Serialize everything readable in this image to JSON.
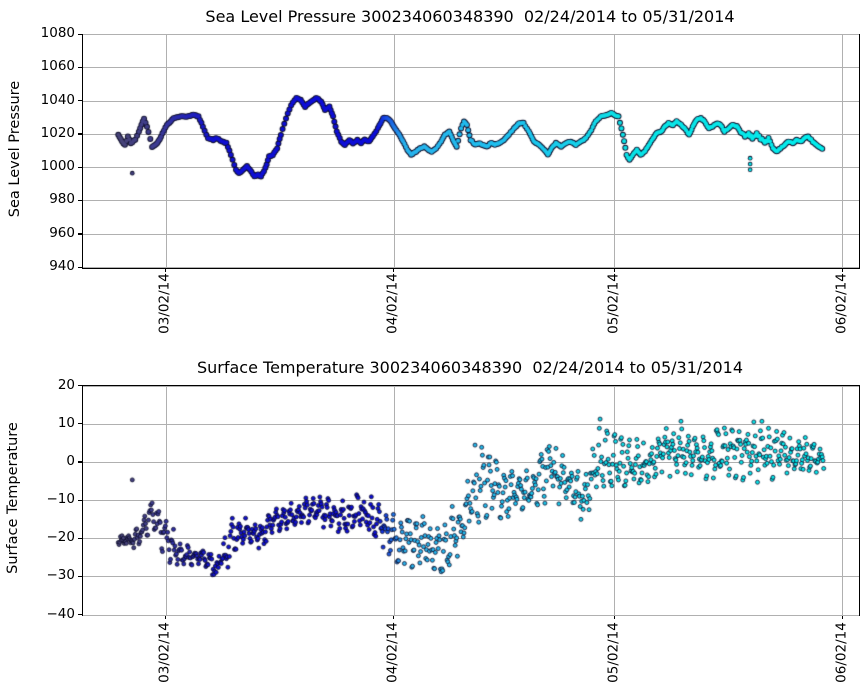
{
  "figure": {
    "background": "#ffffff"
  },
  "colors": {
    "grid": "#b0b0b0",
    "axis": "#000000",
    "text": "#000000",
    "marker_edge": "#0b0b28",
    "colormap_stops": [
      [
        0.0,
        "#474378"
      ],
      [
        0.05,
        "#3d3c92"
      ],
      [
        0.09,
        "#2424b4"
      ],
      [
        0.13,
        "#1111d2"
      ],
      [
        0.36,
        "#0d0dd8"
      ],
      [
        0.4,
        "#28b2ec"
      ],
      [
        0.55,
        "#1fc0ee"
      ],
      [
        0.64,
        "#17d0ea"
      ],
      [
        0.71,
        "#0be2e6"
      ],
      [
        1.0,
        "#04eded"
      ]
    ]
  },
  "chart_data": [
    {
      "type": "scatter",
      "render": "dense-line",
      "title": "Sea Level Pressure 300234060348390  02/24/2014 to 05/31/2014",
      "ylabel": "Sea Level Pressure",
      "ylim": [
        940,
        1080
      ],
      "grid": true,
      "yticks": [
        {
          "v": 1080,
          "label": "1080"
        },
        {
          "v": 1060,
          "label": "1060"
        },
        {
          "v": 1040,
          "label": "1040"
        },
        {
          "v": 1020,
          "label": "1020"
        },
        {
          "v": 1000,
          "label": "1000"
        },
        {
          "v": 980,
          "label": "980"
        },
        {
          "v": 960,
          "label": "960"
        },
        {
          "v": 940,
          "label": "940"
        }
      ],
      "xlim_days": [
        -5.3,
        100.2
      ],
      "xticks": [
        {
          "day": 6,
          "label": "03/02/14"
        },
        {
          "day": 37,
          "label": "04/02/14"
        },
        {
          "day": 67,
          "label": "05/02/14"
        },
        {
          "day": 98,
          "label": "06/02/14"
        }
      ],
      "points_day_hpa": [
        [
          -0.5,
          1020
        ],
        [
          0,
          1016
        ],
        [
          0.4,
          1014
        ],
        [
          0.8,
          1019
        ],
        [
          1.2,
          1015
        ],
        [
          1.8,
          1017
        ],
        [
          2.3,
          1022
        ],
        [
          3,
          1030
        ],
        [
          3.6,
          1022
        ],
        [
          4.1,
          1013
        ],
        [
          4.8,
          1015
        ],
        [
          5.3,
          1019
        ],
        [
          6.1,
          1026
        ],
        [
          7,
          1030
        ],
        [
          7.8,
          1031
        ],
        [
          8.7,
          1031
        ],
        [
          9.7,
          1032
        ],
        [
          10.4,
          1031
        ],
        [
          11,
          1025
        ],
        [
          11.7,
          1018
        ],
        [
          12.4,
          1017
        ],
        [
          12.9,
          1018
        ],
        [
          13.6,
          1016
        ],
        [
          14.2,
          1015
        ],
        [
          14.8,
          1008
        ],
        [
          15.5,
          999
        ],
        [
          15.9,
          997
        ],
        [
          16.5,
          999
        ],
        [
          17,
          1001
        ],
        [
          17.6,
          998
        ],
        [
          18,
          995
        ],
        [
          18.5,
          996
        ],
        [
          18.9,
          995
        ],
        [
          19.5,
          1000
        ],
        [
          20,
          1007
        ],
        [
          20.5,
          1008
        ],
        [
          21.1,
          1012
        ],
        [
          21.6,
          1020
        ],
        [
          22.3,
          1030
        ],
        [
          23,
          1038
        ],
        [
          23.7,
          1042
        ],
        [
          24.3,
          1041
        ],
        [
          24.9,
          1037
        ],
        [
          25.4,
          1039
        ],
        [
          26,
          1041
        ],
        [
          26.5,
          1042
        ],
        [
          27.1,
          1040
        ],
        [
          27.6,
          1035
        ],
        [
          28.2,
          1037
        ],
        [
          28.7,
          1031
        ],
        [
          29.2,
          1022
        ],
        [
          29.8,
          1016
        ],
        [
          30.3,
          1014
        ],
        [
          30.9,
          1017
        ],
        [
          31.4,
          1015
        ],
        [
          32,
          1017
        ],
        [
          32.5,
          1015
        ],
        [
          33,
          1017
        ],
        [
          33.6,
          1016
        ],
        [
          34.1,
          1019
        ],
        [
          34.8,
          1024
        ],
        [
          35.5,
          1030
        ],
        [
          36,
          1030
        ],
        [
          36.6,
          1028
        ],
        [
          37.1,
          1024
        ],
        [
          37.7,
          1020
        ],
        [
          38.2,
          1016
        ],
        [
          38.8,
          1011
        ],
        [
          39.3,
          1008
        ],
        [
          40,
          1010
        ],
        [
          40.5,
          1012
        ],
        [
          41.1,
          1013
        ],
        [
          41.6,
          1011
        ],
        [
          42.1,
          1010
        ],
        [
          42.7,
          1012
        ],
        [
          43.4,
          1016
        ],
        [
          43.9,
          1020
        ],
        [
          44.5,
          1022
        ],
        [
          45,
          1017
        ],
        [
          45.5,
          1013
        ],
        [
          46.1,
          1024
        ],
        [
          46.5,
          1028
        ],
        [
          46.9,
          1026
        ],
        [
          47.4,
          1017
        ],
        [
          48,
          1014
        ],
        [
          48.5,
          1015
        ],
        [
          49.1,
          1014
        ],
        [
          49.6,
          1013
        ],
        [
          50.2,
          1015
        ],
        [
          50.7,
          1014
        ],
        [
          51.2,
          1015
        ],
        [
          51.9,
          1017
        ],
        [
          52.6,
          1020
        ],
        [
          53.3,
          1024
        ],
        [
          54,
          1027
        ],
        [
          54.6,
          1027
        ],
        [
          55.3,
          1022
        ],
        [
          56,
          1016
        ],
        [
          56.7,
          1014
        ],
        [
          57.4,
          1011
        ],
        [
          57.9,
          1008
        ],
        [
          58.4,
          1012
        ],
        [
          59,
          1015
        ],
        [
          59.7,
          1013
        ],
        [
          60.4,
          1015
        ],
        [
          61,
          1016
        ],
        [
          61.7,
          1014
        ],
        [
          62.4,
          1016
        ],
        [
          63.1,
          1018
        ],
        [
          63.8,
          1023
        ],
        [
          64.4,
          1028
        ],
        [
          65.1,
          1031
        ],
        [
          65.8,
          1032
        ],
        [
          66.5,
          1033
        ],
        [
          67,
          1032
        ],
        [
          67.5,
          1031
        ],
        [
          68.1,
          1020
        ],
        [
          68.6,
          1008
        ],
        [
          69,
          1005
        ],
        [
          69.6,
          1009
        ],
        [
          70,
          1011
        ],
        [
          70.5,
          1008
        ],
        [
          71.1,
          1010
        ],
        [
          71.6,
          1014
        ],
        [
          72.2,
          1018
        ],
        [
          72.7,
          1021
        ],
        [
          73.3,
          1022
        ],
        [
          73.8,
          1025
        ],
        [
          74.3,
          1027
        ],
        [
          74.9,
          1026
        ],
        [
          75.4,
          1028
        ],
        [
          76,
          1026
        ],
        [
          76.5,
          1024
        ],
        [
          77.1,
          1020
        ],
        [
          77.6,
          1025
        ],
        [
          78.1,
          1029
        ],
        [
          78.7,
          1030
        ],
        [
          79.2,
          1028
        ],
        [
          79.8,
          1024
        ],
        [
          80.3,
          1025
        ],
        [
          80.9,
          1027
        ],
        [
          81.4,
          1026
        ],
        [
          81.9,
          1022
        ],
        [
          82.5,
          1024
        ],
        [
          83,
          1026
        ],
        [
          83.6,
          1025
        ],
        [
          84.1,
          1022
        ],
        [
          84.7,
          1019
        ],
        [
          85.2,
          1021
        ],
        [
          85.7,
          1018
        ],
        [
          86.3,
          1021
        ],
        [
          86.8,
          1018
        ],
        [
          87.4,
          1015
        ],
        [
          87.9,
          1018
        ],
        [
          88.5,
          1012
        ],
        [
          89,
          1010
        ],
        [
          89.5,
          1012
        ],
        [
          90.1,
          1014
        ],
        [
          90.6,
          1016
        ],
        [
          91.2,
          1015
        ],
        [
          91.7,
          1017
        ],
        [
          92.3,
          1016
        ],
        [
          92.8,
          1018
        ],
        [
          93.3,
          1019
        ],
        [
          93.9,
          1016
        ],
        [
          94.4,
          1014
        ],
        [
          95,
          1012
        ],
        [
          95.4,
          1011
        ]
      ],
      "noisy_intervals": [
        [
          84,
          89,
          1.8
        ]
      ],
      "outliers_day_hpa": [
        [
          1.4,
          997
        ],
        [
          85.4,
          1006
        ],
        [
          85.4,
          1002.5
        ],
        [
          85.4,
          999
        ]
      ]
    },
    {
      "type": "scatter",
      "render": "scatter-cloud",
      "title": "Surface Temperature 300234060348390  02/24/2014 to 05/31/2014",
      "ylabel": "Surface Temperature",
      "ylim": [
        -40,
        20
      ],
      "grid": true,
      "yticks": [
        {
          "v": 20,
          "label": "20"
        },
        {
          "v": 10,
          "label": "10"
        },
        {
          "v": 0,
          "label": "0"
        },
        {
          "v": -10,
          "label": "−10"
        },
        {
          "v": -20,
          "label": "−20"
        },
        {
          "v": -30,
          "label": "−30"
        },
        {
          "v": -40,
          "label": "−40"
        }
      ],
      "xlim_days": [
        -5.3,
        100.2
      ],
      "xticks": [
        {
          "day": 6,
          "label": "03/02/14"
        },
        {
          "day": 37,
          "label": "04/02/14"
        },
        {
          "day": 67,
          "label": "05/02/14"
        },
        {
          "day": 98,
          "label": "06/02/14"
        }
      ],
      "envelope_day_lo_hi": [
        [
          -0.5,
          -22,
          -19
        ],
        [
          0.6,
          -23,
          -18
        ],
        [
          1.9,
          -24,
          -17
        ],
        [
          3.3,
          -20,
          -12
        ],
        [
          4.2,
          -18,
          -9
        ],
        [
          6.4,
          -28,
          -15
        ],
        [
          8,
          -28,
          -21
        ],
        [
          10.8,
          -27,
          -22
        ],
        [
          12.8,
          -33,
          -23
        ],
        [
          15.1,
          -26,
          -14
        ],
        [
          16.9,
          -22,
          -13
        ],
        [
          18.6,
          -25,
          -15
        ],
        [
          20.3,
          -20,
          -12
        ],
        [
          22.3,
          -19,
          -10
        ],
        [
          24.3,
          -18,
          -9
        ],
        [
          26.4,
          -17,
          -7
        ],
        [
          28.4,
          -19,
          -8
        ],
        [
          30.5,
          -20,
          -10
        ],
        [
          32.5,
          -18,
          -6
        ],
        [
          34.5,
          -22,
          -8
        ],
        [
          35.9,
          -26,
          -10
        ],
        [
          37.9,
          -28,
          -12
        ],
        [
          40.4,
          -30,
          -13
        ],
        [
          43.4,
          -33,
          -15
        ],
        [
          46.4,
          -25,
          -8
        ],
        [
          48.4,
          -18,
          8
        ],
        [
          51.9,
          -15,
          0
        ],
        [
          55.6,
          -13,
          -1
        ],
        [
          58.3,
          -10,
          8
        ],
        [
          62.8,
          -17,
          -3
        ],
        [
          64.8,
          -8,
          13
        ],
        [
          68.5,
          -10,
          8
        ],
        [
          71.9,
          -6,
          6
        ],
        [
          74.6,
          -4,
          13
        ],
        [
          78.7,
          -6,
          9
        ],
        [
          82.8,
          -5,
          12
        ],
        [
          86.8,
          -7,
          12
        ],
        [
          90.9,
          -4,
          8
        ],
        [
          95.4,
          -3,
          6
        ]
      ],
      "outliers_day_temp": [
        [
          1.4,
          -4.6
        ]
      ]
    }
  ]
}
